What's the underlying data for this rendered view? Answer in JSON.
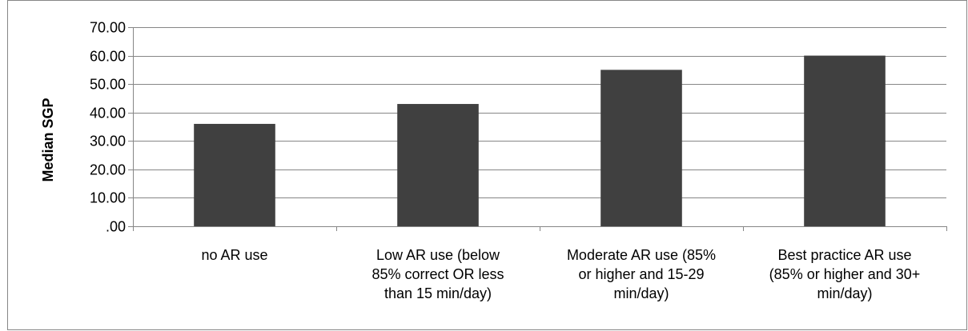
{
  "chart_data": {
    "type": "bar",
    "title": "",
    "xlabel": "",
    "ylabel": "Median SGP",
    "ylim": [
      0,
      70
    ],
    "y_ticks": [
      ".00",
      "10.00",
      "20.00",
      "30.00",
      "40.00",
      "50.00",
      "60.00",
      "70.00"
    ],
    "grid": true,
    "legend": "none",
    "categories": [
      [
        "no AR use"
      ],
      [
        "Low AR use (below",
        "85% correct OR less",
        "than 15 min/day)"
      ],
      [
        "Moderate AR use (85%",
        "or higher and 15-29",
        "min/day)"
      ],
      [
        "Best practice AR use",
        "(85% or higher and 30+",
        "min/day)"
      ]
    ],
    "values": [
      36,
      43,
      55,
      60
    ],
    "colors": {
      "bar": "#404040",
      "grid": "#868686",
      "axis": "#868686",
      "border": "#868686"
    }
  }
}
